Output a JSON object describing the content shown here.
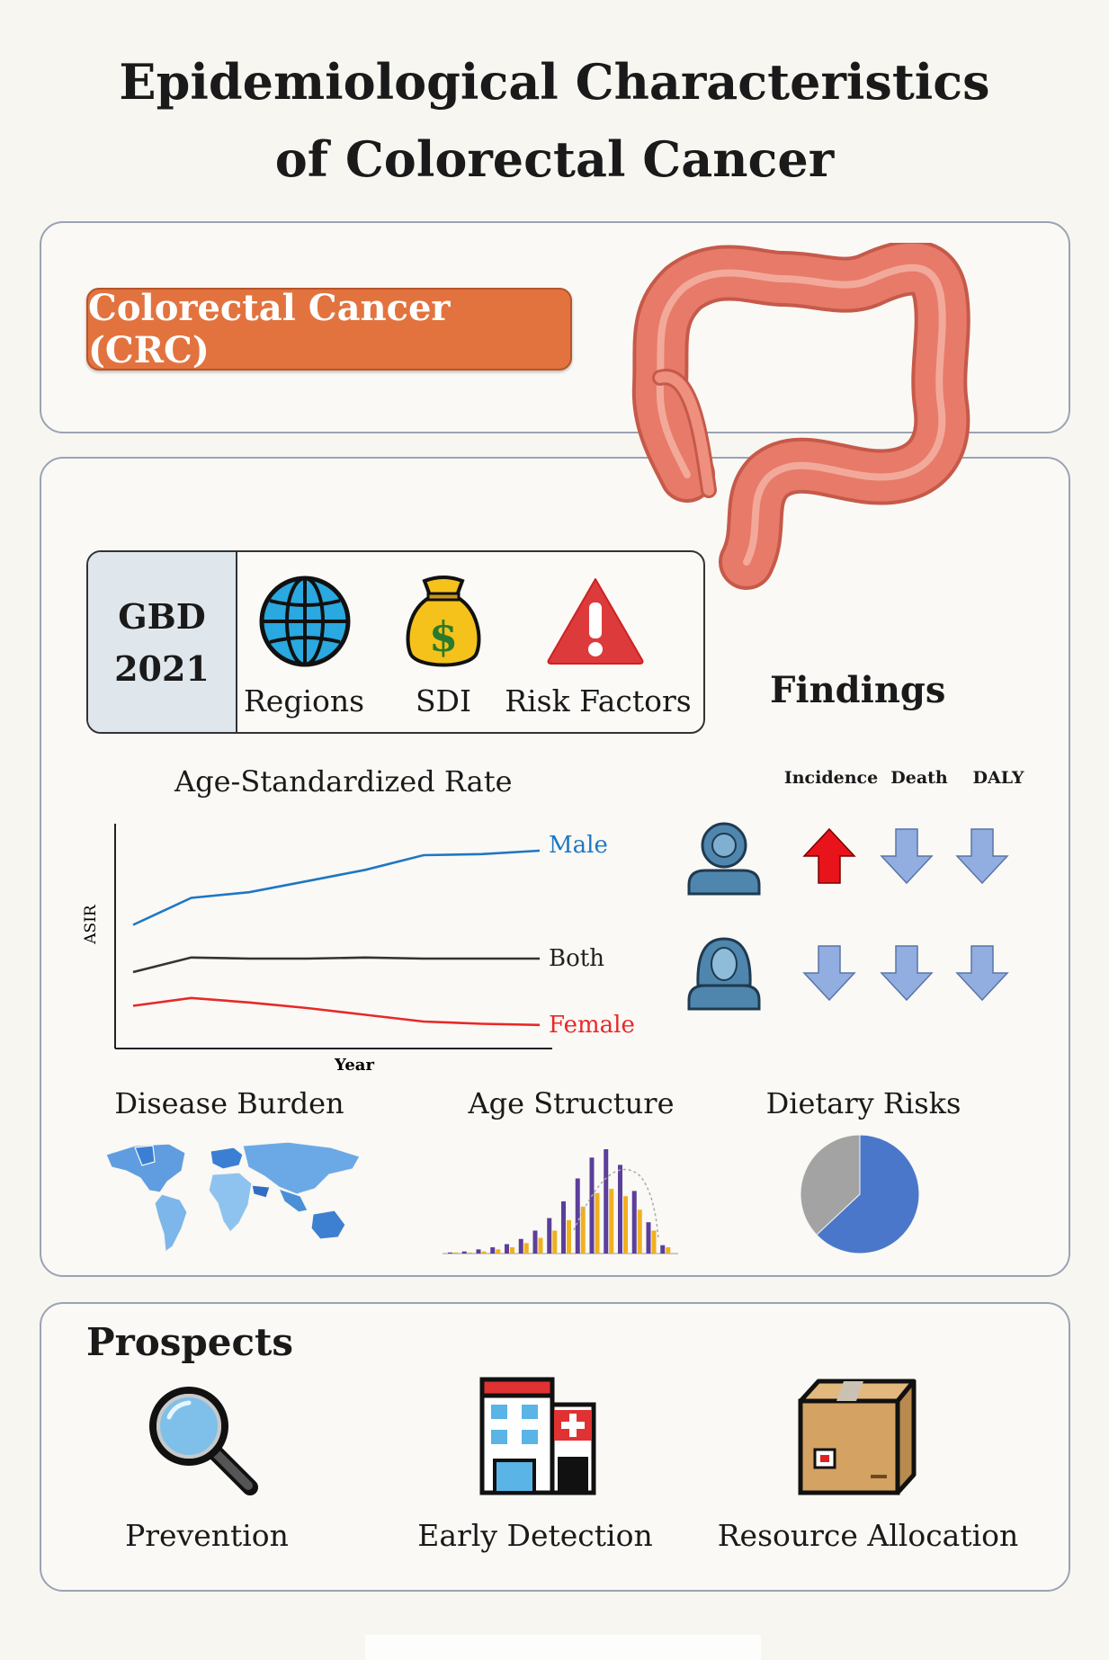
{
  "title": {
    "line1": "Epidemiological Characteristics",
    "line2": "of Colorectal Cancer"
  },
  "crc_label": "Colorectal Cancer (CRC)",
  "gbd": {
    "label_line1": "GBD",
    "label_line2": "2021",
    "items": [
      {
        "label": "Regions",
        "icon": "globe-icon"
      },
      {
        "label": "SDI",
        "icon": "money-bag-icon"
      },
      {
        "label": "Risk Factors",
        "icon": "warning-icon"
      }
    ]
  },
  "findings": {
    "title": "Findings",
    "columns": [
      "Incidence",
      "Death",
      "DALY"
    ],
    "rows": [
      {
        "group": "male",
        "icon": "male-person-icon",
        "trends": [
          "up",
          "down",
          "down"
        ]
      },
      {
        "group": "female",
        "icon": "female-person-icon",
        "trends": [
          "down",
          "down",
          "down"
        ]
      }
    ],
    "colors": {
      "up": "#e8131b",
      "down": "#92aee0"
    }
  },
  "chart_data": {
    "type": "line",
    "title": "Age-Standardized Rate",
    "xlabel": "Year",
    "ylabel": "ASIR",
    "grid": false,
    "series": [
      {
        "name": "Male",
        "color": "#1f77c4",
        "values": [
          1.0,
          3.4,
          3.9,
          4.9,
          5.9,
          7.2,
          7.3,
          7.6
        ]
      },
      {
        "name": "Both",
        "color": "#333333",
        "values": [
          -3.2,
          -1.9,
          -2.0,
          -2.0,
          -1.9,
          -2.0,
          -2.0,
          -2.0
        ]
      },
      {
        "name": "Female",
        "color": "#e82828",
        "values": [
          -6.2,
          -5.5,
          -5.9,
          -6.4,
          -7.0,
          -7.6,
          -7.8,
          -7.9
        ]
      }
    ],
    "ylim": [
      -10,
      10
    ]
  },
  "sections": {
    "disease_burden": "Disease Burden",
    "age_structure": "Age Structure",
    "dietary_risks": "Dietary Risks"
  },
  "dietary_pie": {
    "slices": [
      {
        "value": 63,
        "color": "#4a77c9"
      },
      {
        "value": 37,
        "color": "#a3a3a3"
      }
    ]
  },
  "age_structure_bars": {
    "purple": [
      0.01,
      0.02,
      0.04,
      0.06,
      0.09,
      0.14,
      0.22,
      0.34,
      0.5,
      0.72,
      0.92,
      1.0,
      0.85,
      0.6,
      0.3,
      0.08
    ],
    "orange": [
      0.01,
      0.01,
      0.02,
      0.04,
      0.06,
      0.1,
      0.15,
      0.22,
      0.32,
      0.45,
      0.58,
      0.62,
      0.55,
      0.42,
      0.22,
      0.06
    ]
  },
  "prospects": {
    "title": "Prospects",
    "items": [
      {
        "label": "Prevention",
        "icon": "magnifier-icon"
      },
      {
        "label": "Early Detection",
        "icon": "hospital-icon"
      },
      {
        "label": "Resource Allocation",
        "icon": "package-icon"
      }
    ]
  }
}
